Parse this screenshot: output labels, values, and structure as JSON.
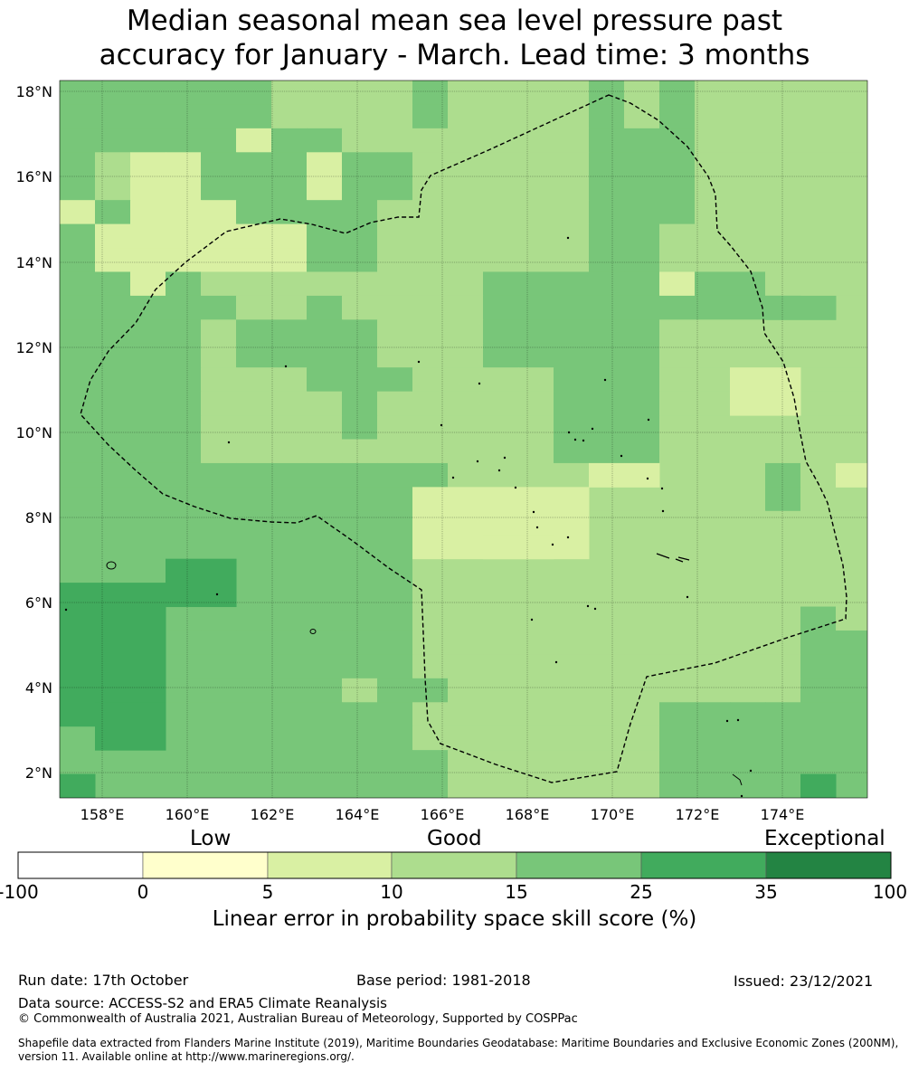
{
  "title_line1": "Median seasonal mean sea level pressure past",
  "title_line2": "accuracy for January - March. Lead time: 3 months",
  "map": {
    "lon_ticks": [
      "158°E",
      "160°E",
      "162°E",
      "164°E",
      "166°E",
      "168°E",
      "170°E",
      "172°E",
      "174°E"
    ],
    "lat_ticks": [
      "18°N",
      "16°N",
      "14°N",
      "12°N",
      "10°N",
      "8°N",
      "6°N",
      "4°N",
      "2°N"
    ],
    "lon_range": [
      157,
      176
    ],
    "lat_range": [
      1.4,
      18.3
    ],
    "eez_boundary": "dashed",
    "grid": true
  },
  "colorbar": {
    "categories": [
      "Low",
      "Good",
      "Exceptional"
    ],
    "ticks": [
      "-100",
      "0",
      "5",
      "10",
      "15",
      "25",
      "35",
      "100"
    ],
    "colors": [
      "#ffffff",
      "#ffffcc",
      "#d9f0a3",
      "#addd8e",
      "#78c679",
      "#41ab5d",
      "#238443"
    ],
    "label": "Linear error in probability space skill score (%)"
  },
  "footer": {
    "run_date": "Run date: 17th October",
    "base_period": "Base period: 1981-2018",
    "issued": "Issued: 23/12/2021",
    "data_source": "Data source: ACCESS-S2 and ERA5 Climate Reanalysis",
    "copyright": "© Commonwealth of Australia 2021, Australian Bureau of Meteorology, Supported by COSPPac",
    "shapefile": "Shapefile data extracted from Flanders Marine Institute (2019), Maritime Boundaries Geodatabase: Maritime Boundaries and Exclusive Economic Zones (200NM), version 11. Available online at http://www.marineregions.org/."
  }
}
